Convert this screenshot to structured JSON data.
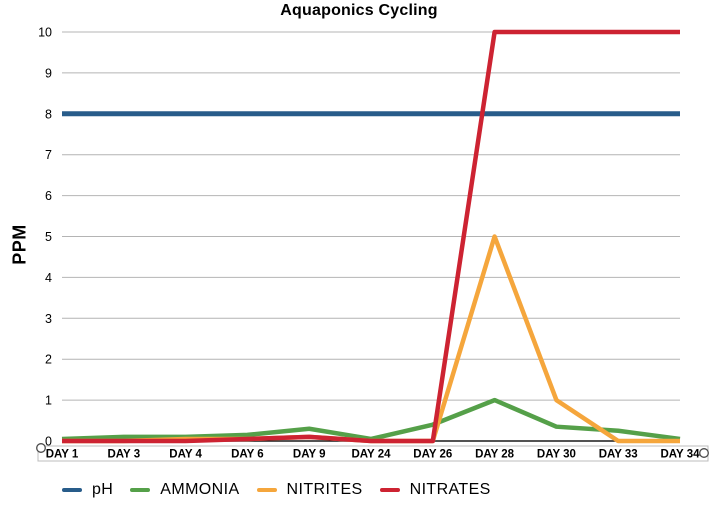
{
  "title": "Aquaponics Cycling",
  "chart_data": {
    "type": "line",
    "title": "Aquaponics Cycling",
    "xlabel": "",
    "ylabel": "PPM",
    "ylim": [
      0,
      10
    ],
    "y_ticks": [
      0,
      1,
      2,
      3,
      4,
      5,
      6,
      7,
      8,
      9,
      10
    ],
    "grid": true,
    "gridline_color": "#b4b4b4",
    "zero_line_color": "#1a1a1a",
    "legend_position": "bottom",
    "categories": [
      "DAY 1",
      "DAY 3",
      "DAY 4",
      "DAY 6",
      "DAY 9",
      "DAY 24",
      "DAY 26",
      "DAY 28",
      "DAY 30",
      "DAY 33",
      "DAY 34"
    ],
    "series": [
      {
        "name": "pH",
        "color": "#285C8A",
        "values": [
          8,
          8,
          8,
          8,
          8,
          8,
          8,
          8,
          8,
          8,
          8
        ]
      },
      {
        "name": "AMMONIA",
        "color": "#55A049",
        "values": [
          0.05,
          0.1,
          0.1,
          0.15,
          0.3,
          0.05,
          0.4,
          1,
          0.35,
          0.25,
          0.05
        ]
      },
      {
        "name": "NITRITES",
        "color": "#F5A63C",
        "values": [
          0,
          0,
          0.05,
          0.05,
          0.1,
          0,
          0,
          5,
          1,
          0,
          0
        ]
      },
      {
        "name": "NITRATES",
        "color": "#CD2332",
        "values": [
          0,
          0,
          0,
          0.05,
          0.1,
          0,
          0,
          10,
          10,
          10,
          10
        ]
      }
    ]
  }
}
